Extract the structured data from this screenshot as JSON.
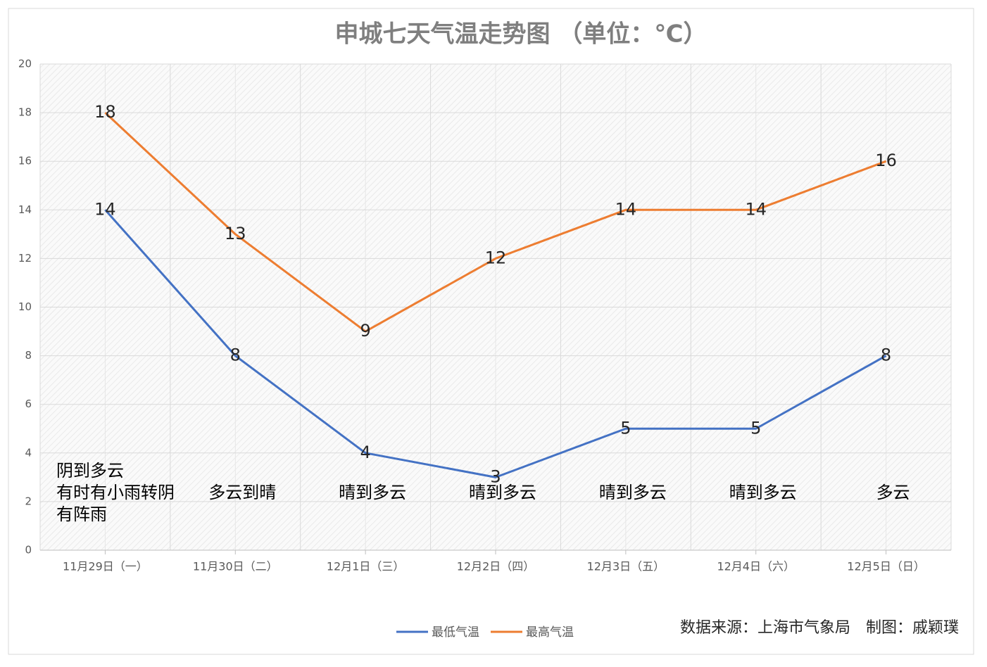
{
  "chart_data": {
    "type": "line",
    "title": "申城七天气温走势图 （单位：℃）",
    "categories": [
      "11月29日（一）",
      "11月30日（二）",
      "12月1日（三）",
      "12月2日（四）",
      "12月3日（五）",
      "12月4日（六）",
      "12月5日（日）"
    ],
    "series": [
      {
        "name": "最低气温",
        "color": "#4472c4",
        "values": [
          14,
          8,
          4,
          3,
          5,
          5,
          8
        ]
      },
      {
        "name": "最高气温",
        "color": "#ed7d31",
        "values": [
          18,
          13,
          9,
          12,
          14,
          14,
          16
        ]
      }
    ],
    "weather": [
      [
        "阴到多云",
        "有时有小雨转阴",
        "有阵雨"
      ],
      [
        "多云到晴"
      ],
      [
        "晴到多云"
      ],
      [
        "晴到多云"
      ],
      [
        "晴到多云"
      ],
      [
        "晴到多云"
      ],
      [
        "多云"
      ]
    ],
    "ylim": [
      0,
      20
    ],
    "yticks": [
      0,
      2,
      4,
      6,
      8,
      10,
      12,
      14,
      16,
      18,
      20
    ],
    "grid": true,
    "source": "数据来源：上海市气象局　制图：戚颖璞"
  }
}
